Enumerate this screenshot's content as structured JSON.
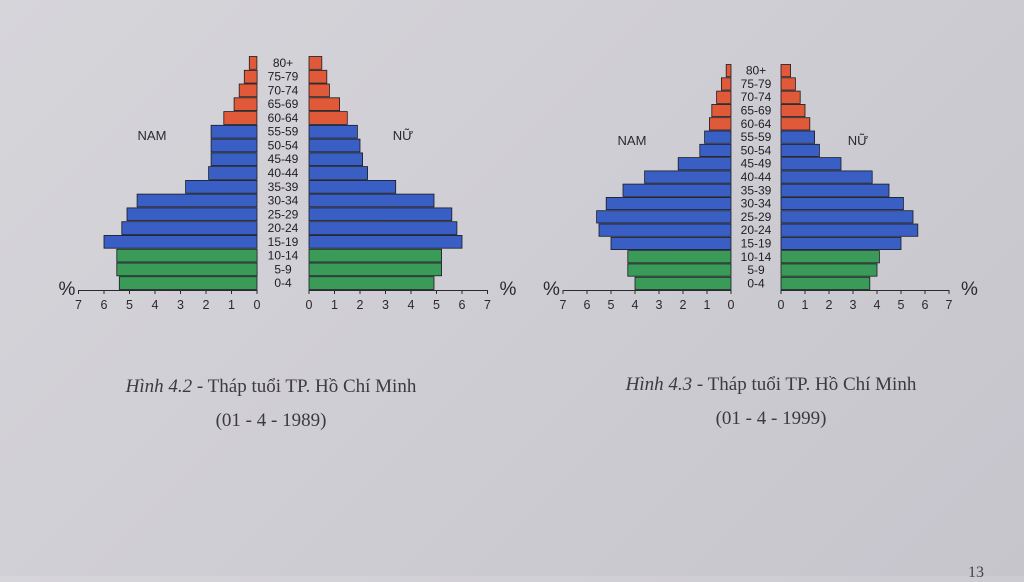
{
  "colors": {
    "old": "#e05a3a",
    "working": "#3a5fc4",
    "young": "#3a9a58",
    "edge": "#1a1a22"
  },
  "chart_data": [
    {
      "type": "bar",
      "orientation": "horizontal-pyramid",
      "age_groups": [
        "80+",
        "75-79",
        "70-74",
        "65-69",
        "60-64",
        "55-59",
        "50-54",
        "45-49",
        "40-44",
        "35-39",
        "30-34",
        "25-29",
        "20-24",
        "15-19",
        "10-14",
        "5-9",
        "0-4"
      ],
      "male_label": "NAM",
      "female_label": "NỮ",
      "percent_symbol": "%",
      "x_ticks": [
        "7",
        "6",
        "5",
        "4",
        "3",
        "2",
        "1",
        "0",
        "0",
        "1",
        "2",
        "3",
        "4",
        "5",
        "6",
        "7"
      ],
      "xlim": [
        0,
        7
      ],
      "series": [
        {
          "name": "NAM",
          "values": [
            0.3,
            0.5,
            0.7,
            0.9,
            1.3,
            1.8,
            1.8,
            1.8,
            1.9,
            2.8,
            4.7,
            5.1,
            5.3,
            6.0,
            5.5,
            5.5,
            5.4
          ]
        },
        {
          "name": "NỮ",
          "values": [
            0.5,
            0.7,
            0.8,
            1.2,
            1.5,
            1.9,
            2.0,
            2.1,
            2.3,
            3.4,
            4.9,
            5.6,
            5.8,
            6.0,
            5.2,
            5.2,
            4.9
          ]
        }
      ],
      "caption_label": "Hình 4.2",
      "caption_title": " - Tháp tuổi TP. Hồ Chí Minh",
      "caption_date": "(01 - 4 - 1989)"
    },
    {
      "type": "bar",
      "orientation": "horizontal-pyramid",
      "age_groups": [
        "80+",
        "75-79",
        "70-74",
        "65-69",
        "60-64",
        "55-59",
        "50-54",
        "45-49",
        "40-44",
        "35-39",
        "30-34",
        "25-29",
        "20-24",
        "15-19",
        "10-14",
        "5-9",
        "0-4"
      ],
      "male_label": "NAM",
      "female_label": "NỮ",
      "percent_symbol": "%",
      "x_ticks": [
        "7",
        "6",
        "5",
        "4",
        "3",
        "2",
        "1",
        "0",
        "0",
        "1",
        "2",
        "3",
        "4",
        "5",
        "6",
        "7"
      ],
      "xlim": [
        0,
        7
      ],
      "series": [
        {
          "name": "NAM",
          "values": [
            0.2,
            0.4,
            0.6,
            0.8,
            0.9,
            1.1,
            1.3,
            2.2,
            3.6,
            4.5,
            5.2,
            5.6,
            5.5,
            5.0,
            4.3,
            4.3,
            4.0
          ]
        },
        {
          "name": "NỮ",
          "values": [
            0.4,
            0.6,
            0.8,
            1.0,
            1.2,
            1.4,
            1.6,
            2.5,
            3.8,
            4.5,
            5.1,
            5.5,
            5.7,
            5.0,
            4.1,
            4.0,
            3.7
          ]
        }
      ],
      "caption_label": "Hình 4.3",
      "caption_title": " - Tháp tuổi TP. Hồ Chí Minh",
      "caption_date": "(01 - 4 - 1999)"
    }
  ],
  "page_number": "13"
}
